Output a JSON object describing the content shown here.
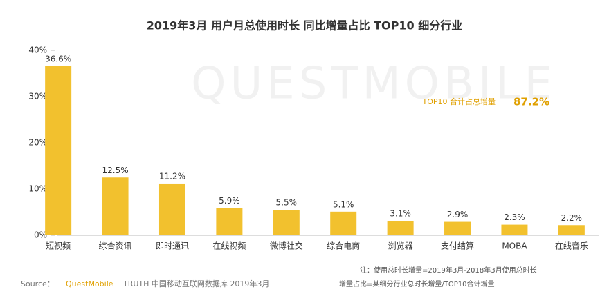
{
  "chart_data": {
    "type": "bar",
    "title": "2019年3月 用户月总使用时长 同比增量占比 TOP10 细分行业",
    "watermark": "QUESTMOBILE",
    "categories": [
      "短视频",
      "综合资讯",
      "即时通讯",
      "在线视频",
      "微博社交",
      "综合电商",
      "浏览器",
      "支付结算",
      "MOBA",
      "在线音乐"
    ],
    "values": [
      36.6,
      12.5,
      11.2,
      5.9,
      5.5,
      5.1,
      3.1,
      2.9,
      2.3,
      2.2
    ],
    "value_labels": [
      "36.6%",
      "12.5%",
      "11.2%",
      "5.9%",
      "5.5%",
      "5.1%",
      "3.1%",
      "2.9%",
      "2.3%",
      "2.2%"
    ],
    "color": "#f2c12e",
    "ylim": [
      0,
      40
    ],
    "yticks": [
      {
        "value": 0,
        "label": "0%"
      },
      {
        "value": 10,
        "label": "10%"
      },
      {
        "value": 20,
        "label": "20%"
      },
      {
        "value": 30,
        "label": "30%"
      },
      {
        "value": 40,
        "label": "40%"
      }
    ],
    "annotation": {
      "label": "TOP10 合计占总增量",
      "value": "87.2%"
    },
    "notes": [
      "注：使用总时长增量=2019年3月-2018年3月使用总时长",
      "增量占比=某细分行业总时长增量/TOP10合计增量"
    ],
    "source": {
      "label": "Source：",
      "brand": "QuestMobile",
      "text": "TRUTH 中国移动互联网数据库 2019年3月"
    }
  }
}
